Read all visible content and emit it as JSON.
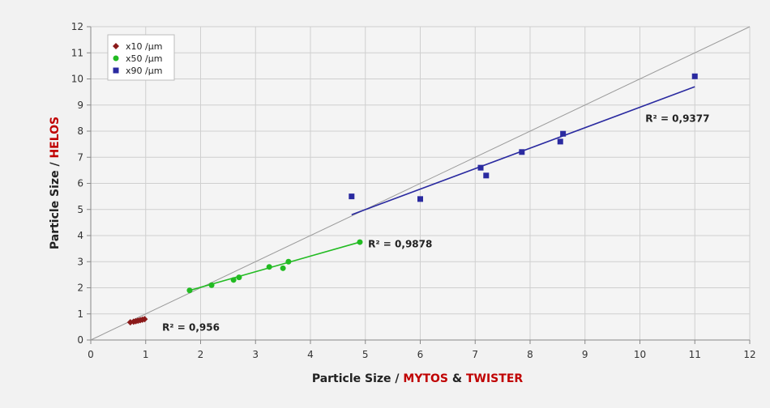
{
  "chart_data": {
    "type": "scatter",
    "xlim": [
      0,
      12
    ],
    "ylim": [
      0,
      12
    ],
    "xticks": [
      "0",
      "1",
      "2",
      "3",
      "4",
      "5",
      "6",
      "7",
      "8",
      "9",
      "10",
      "11",
      "12"
    ],
    "yticks": [
      "0",
      "1",
      "2",
      "3",
      "4",
      "5",
      "6",
      "7",
      "8",
      "9",
      "10",
      "11",
      "12"
    ],
    "xlabel": {
      "part1": "Particle Size / ",
      "part2": "MYTOS",
      "part3": " & ",
      "part4": "TWISTER"
    },
    "ylabel": {
      "part1": "Particle Size  /  ",
      "part2": "HELOS"
    },
    "grid": true,
    "legend_position": "top-left",
    "reference_line": [
      [
        0,
        0
      ],
      [
        12,
        12
      ]
    ],
    "series": [
      {
        "name": "x10 /µm",
        "marker": "diamond",
        "color": "#8b1a1a",
        "points": [
          [
            0.72,
            0.68
          ],
          [
            0.78,
            0.7
          ],
          [
            0.82,
            0.72
          ],
          [
            0.86,
            0.74
          ],
          [
            0.9,
            0.76
          ],
          [
            0.94,
            0.78
          ],
          [
            0.98,
            0.8
          ]
        ],
        "trend": [
          [
            0.72,
            0.68
          ],
          [
            0.98,
            0.8
          ]
        ],
        "r2_label": "R² = 0,956",
        "r2_anchor": [
          1.3,
          0.35
        ]
      },
      {
        "name": "x50 /µm",
        "marker": "circle",
        "color": "#22bb22",
        "points": [
          [
            1.8,
            1.9
          ],
          [
            2.2,
            2.1
          ],
          [
            2.6,
            2.3
          ],
          [
            2.7,
            2.4
          ],
          [
            3.25,
            2.8
          ],
          [
            3.5,
            2.75
          ],
          [
            3.6,
            3.0
          ],
          [
            4.9,
            3.75
          ]
        ],
        "trend": [
          [
            1.8,
            1.9
          ],
          [
            4.9,
            3.75
          ]
        ],
        "r2_label": "R² = 0,9878",
        "r2_anchor": [
          5.05,
          3.55
        ]
      },
      {
        "name": "x90 /µm",
        "marker": "square",
        "color": "#2a2aa0",
        "points": [
          [
            4.75,
            5.5
          ],
          [
            6.0,
            5.4
          ],
          [
            7.1,
            6.6
          ],
          [
            7.2,
            6.3
          ],
          [
            7.85,
            7.2
          ],
          [
            8.55,
            7.6
          ],
          [
            8.6,
            7.9
          ],
          [
            11.0,
            10.1
          ]
        ],
        "trend": [
          [
            4.75,
            4.8
          ],
          [
            11.0,
            9.7
          ]
        ],
        "r2_label": "R² = 0,9377",
        "r2_anchor": [
          10.1,
          8.35
        ]
      }
    ]
  }
}
